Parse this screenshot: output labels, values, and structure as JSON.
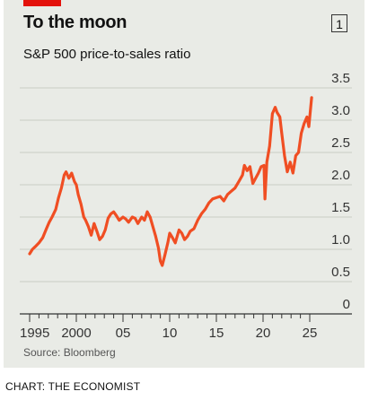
{
  "header": {
    "title": "To the moon",
    "subtitle": "S&P 500 price-to-sales ratio",
    "chart_number": "1"
  },
  "footer": {
    "source": "Source: Bloomberg",
    "credit": "CHART: THE ECONOMIST"
  },
  "colors": {
    "accent": "#e3120b",
    "line": "#f04e23",
    "grid": "#c9ccc4",
    "background": "#e9ebe6"
  },
  "chart_data": {
    "type": "line",
    "title": "To the moon",
    "subtitle": "S&P 500 price-to-sales ratio",
    "xlabel": "",
    "ylabel": "",
    "xlim": [
      1995,
      2025.6
    ],
    "ylim": [
      0,
      3.5
    ],
    "y_ticks": [
      0,
      0.5,
      1.0,
      1.5,
      2.0,
      2.5,
      3.0,
      3.5
    ],
    "y_tick_labels": [
      "0",
      "0.5",
      "1.0",
      "1.5",
      "2.0",
      "2.5",
      "3.0",
      "3.5"
    ],
    "x_ticks": [
      1995,
      2000,
      2005,
      2010,
      2015,
      2020,
      2025
    ],
    "x_tick_labels": [
      "1995",
      "2000",
      "05",
      "10",
      "15",
      "20",
      "25"
    ],
    "grid": true,
    "series": [
      {
        "x": [
          1995.0,
          1995.3,
          1995.6,
          1996.0,
          1996.4,
          1996.8,
          1997.1,
          1997.4,
          1997.8,
          1998.1,
          1998.4,
          1998.7,
          1998.9,
          1999.2,
          1999.5,
          1999.8,
          2000.0,
          2000.2,
          2000.5,
          2000.8,
          2001.0,
          2001.3,
          2001.6,
          2001.9,
          2002.2,
          2002.5,
          2002.8,
          2003.1,
          2003.4,
          2003.7,
          2004.0,
          2004.3,
          2004.6,
          2005.0,
          2005.3,
          2005.6,
          2006.0,
          2006.3,
          2006.6,
          2007.0,
          2007.3,
          2007.6,
          2007.9,
          2008.2,
          2008.5,
          2008.8,
          2009.0,
          2009.2,
          2009.5,
          2009.8,
          2010.0,
          2010.3,
          2010.6,
          2011.0,
          2011.3,
          2011.6,
          2011.9,
          2012.2,
          2012.6,
          2013.0,
          2013.4,
          2013.8,
          2014.2,
          2014.6,
          2015.0,
          2015.4,
          2015.8,
          2016.2,
          2016.6,
          2017.0,
          2017.4,
          2017.8,
          2018.0,
          2018.3,
          2018.6,
          2018.9,
          2019.2,
          2019.5,
          2019.8,
          2020.1,
          2020.2,
          2020.4,
          2020.7,
          2021.0,
          2021.3,
          2021.5,
          2021.8,
          2022.0,
          2022.3,
          2022.6,
          2022.9,
          2023.2,
          2023.5,
          2023.8,
          2024.1,
          2024.4,
          2024.7,
          2024.9,
          2025.2
        ],
        "values": [
          0.93,
          1.0,
          1.04,
          1.1,
          1.18,
          1.32,
          1.42,
          1.5,
          1.62,
          1.8,
          1.95,
          2.15,
          2.2,
          2.1,
          2.18,
          2.05,
          2.0,
          1.85,
          1.7,
          1.5,
          1.45,
          1.35,
          1.22,
          1.4,
          1.28,
          1.15,
          1.2,
          1.3,
          1.48,
          1.55,
          1.58,
          1.52,
          1.45,
          1.5,
          1.47,
          1.42,
          1.5,
          1.48,
          1.4,
          1.5,
          1.45,
          1.58,
          1.5,
          1.35,
          1.2,
          1.02,
          0.82,
          0.75,
          0.92,
          1.1,
          1.25,
          1.18,
          1.1,
          1.3,
          1.25,
          1.15,
          1.2,
          1.28,
          1.32,
          1.45,
          1.55,
          1.62,
          1.72,
          1.78,
          1.8,
          1.82,
          1.75,
          1.85,
          1.9,
          1.95,
          2.05,
          2.15,
          2.3,
          2.22,
          2.28,
          2.02,
          2.1,
          2.18,
          2.28,
          2.3,
          1.78,
          2.35,
          2.6,
          3.1,
          3.2,
          3.12,
          3.05,
          2.8,
          2.45,
          2.2,
          2.35,
          2.18,
          2.45,
          2.5,
          2.8,
          2.95,
          3.05,
          2.9,
          3.35
        ]
      }
    ]
  }
}
